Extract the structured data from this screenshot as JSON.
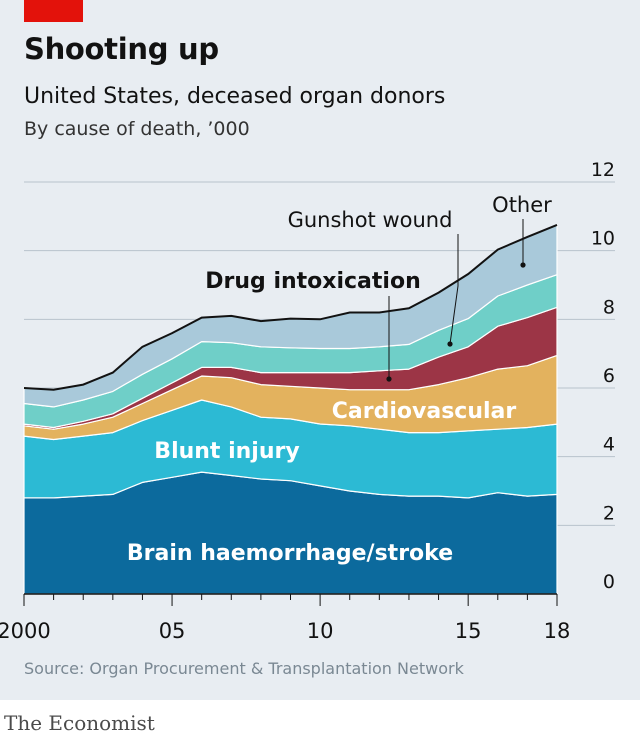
{
  "header": {
    "title": "Shooting up",
    "subtitle": "United States, deceased organ donors",
    "unit": "By cause of death, ’000"
  },
  "footer": {
    "source": "Source: Organ Procurement & Transplantation Network",
    "brand": "The Economist"
  },
  "colors": {
    "brain": "#0c6a9d",
    "blunt": "#2cbad4",
    "cardio": "#e3b25e",
    "drug": "#9c3546",
    "gunshot": "#6fcfc8",
    "other": "#a9c9da",
    "total_line": "#121212",
    "accent": "#e3120b"
  },
  "chart_data": {
    "type": "area",
    "stacked": true,
    "x": [
      2000,
      2001,
      2002,
      2003,
      2004,
      2005,
      2006,
      2007,
      2008,
      2009,
      2010,
      2011,
      2012,
      2013,
      2014,
      2015,
      2016,
      2017,
      2018
    ],
    "x_tick_values": [
      2000,
      2005,
      2010,
      2015,
      2018
    ],
    "x_tick_labels": [
      "2000",
      "05",
      "10",
      "15",
      "18"
    ],
    "y_ticks": [
      "0",
      "2",
      "4",
      "6",
      "8",
      "10",
      "12"
    ],
    "ylim": [
      0,
      12
    ],
    "grid": true,
    "series": [
      {
        "key": "brain",
        "name": "Brain haemorrhage/stroke",
        "values": [
          2.8,
          2.8,
          2.85,
          2.9,
          3.25,
          3.4,
          3.55,
          3.45,
          3.35,
          3.3,
          3.15,
          3.0,
          2.9,
          2.85,
          2.85,
          2.8,
          2.95,
          2.85,
          2.9
        ]
      },
      {
        "key": "blunt",
        "name": "Blunt injury",
        "values": [
          1.8,
          1.7,
          1.75,
          1.8,
          1.8,
          1.95,
          2.1,
          2.0,
          1.8,
          1.8,
          1.8,
          1.9,
          1.9,
          1.85,
          1.85,
          1.95,
          1.85,
          2.0,
          2.05
        ]
      },
      {
        "key": "cardio",
        "name": "Cardiovascular",
        "values": [
          0.3,
          0.3,
          0.35,
          0.45,
          0.5,
          0.6,
          0.7,
          0.85,
          0.95,
          0.95,
          1.05,
          1.05,
          1.15,
          1.25,
          1.4,
          1.55,
          1.75,
          1.8,
          2.0
        ]
      },
      {
        "key": "drug",
        "name": "Drug intoxication",
        "values": [
          0.05,
          0.05,
          0.08,
          0.1,
          0.15,
          0.2,
          0.25,
          0.3,
          0.35,
          0.4,
          0.45,
          0.5,
          0.55,
          0.6,
          0.8,
          0.9,
          1.25,
          1.4,
          1.4
        ]
      },
      {
        "key": "gunshot",
        "name": "Gunshot wound",
        "values": [
          0.6,
          0.6,
          0.62,
          0.65,
          0.7,
          0.7,
          0.75,
          0.72,
          0.75,
          0.72,
          0.7,
          0.7,
          0.7,
          0.72,
          0.78,
          0.82,
          0.88,
          0.95,
          0.95
        ]
      },
      {
        "key": "other",
        "name": "Other",
        "values": [
          0.45,
          0.5,
          0.45,
          0.55,
          0.8,
          0.75,
          0.7,
          0.78,
          0.75,
          0.85,
          0.85,
          1.05,
          1.0,
          1.05,
          1.1,
          1.3,
          1.35,
          1.4,
          1.45
        ]
      }
    ],
    "total": [
      6.0,
      5.95,
      6.1,
      6.45,
      7.2,
      7.6,
      8.05,
      8.1,
      7.95,
      8.02,
      8.0,
      8.2,
      8.2,
      8.32,
      8.78,
      9.32,
      10.03,
      10.4,
      10.75
    ],
    "labels": [
      {
        "text": "Brain haemorrhage/stroke",
        "series": "brain"
      },
      {
        "text": "Blunt injury",
        "series": "blunt"
      },
      {
        "text": "Cardiovascular",
        "series": "cardio"
      },
      {
        "text": "Drug intoxication",
        "series": "drug"
      },
      {
        "text": "Gunshot wound",
        "series": "gunshot"
      },
      {
        "text": "Other",
        "series": "other"
      }
    ]
  }
}
